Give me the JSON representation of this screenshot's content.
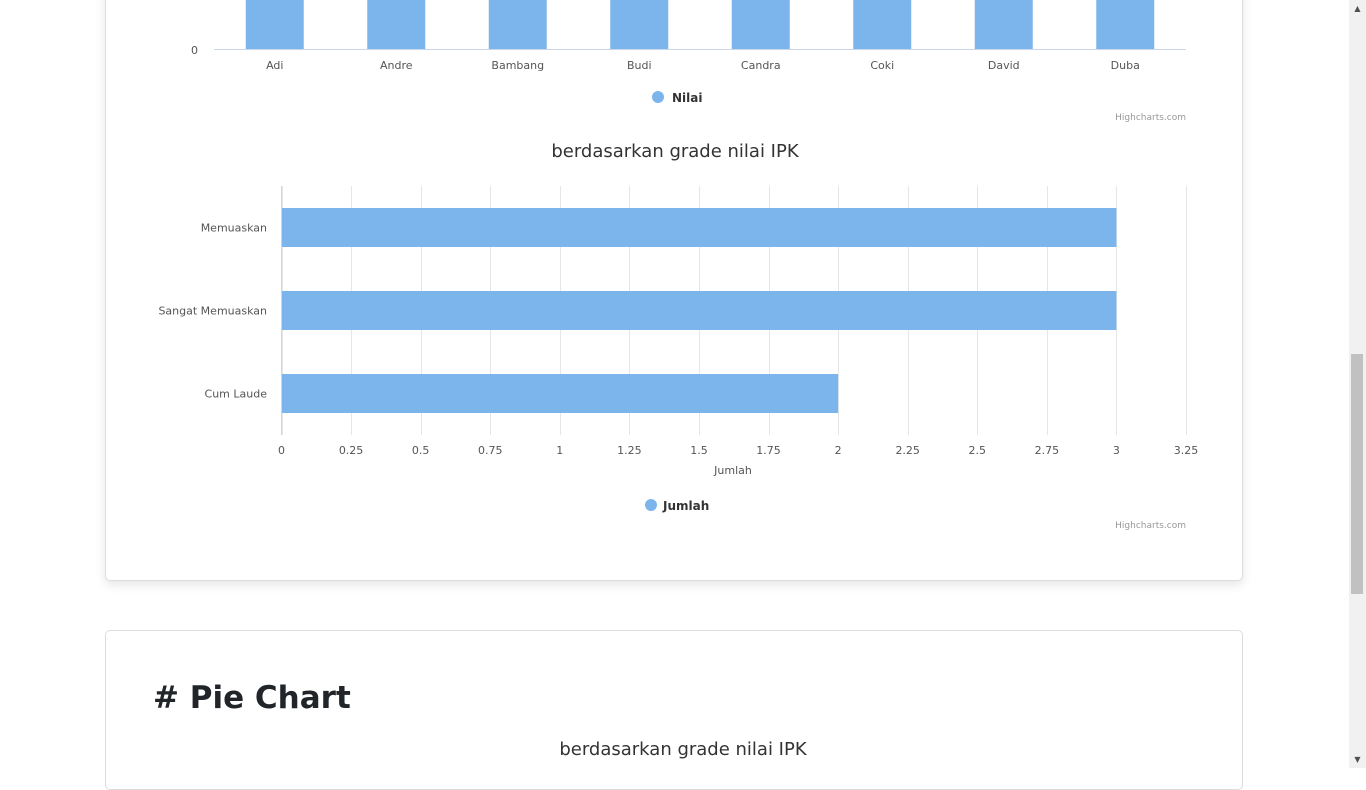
{
  "chart_data": [
    {
      "type": "bar",
      "categories": [
        "Adi",
        "Andre",
        "Bambang",
        "Budi",
        "Candra",
        "Coki",
        "David",
        "Duba"
      ],
      "series": [
        {
          "name": "Nilai",
          "values": [
            null,
            null,
            null,
            null,
            null,
            null,
            null,
            null
          ]
        }
      ],
      "ytick_visible": [
        "0"
      ],
      "legend": "bottom-center",
      "credits": "Highcharts.com",
      "color": "#7cb5ec"
    },
    {
      "type": "bar",
      "orientation": "horizontal",
      "title": "berdasarkan grade nilai IPK",
      "categories": [
        "Memuaskan",
        "Sangat Memuaskan",
        "Cum Laude"
      ],
      "series": [
        {
          "name": "Jumlah",
          "values": [
            3,
            3,
            2
          ]
        }
      ],
      "xlabel": "Jumlah",
      "xlim": [
        0,
        3.25
      ],
      "xticks": [
        "0",
        "0.25",
        "0.5",
        "0.75",
        "1",
        "1.25",
        "1.5",
        "1.75",
        "2",
        "2.25",
        "2.5",
        "2.75",
        "3",
        "3.25"
      ],
      "grid": true,
      "legend": "bottom-center",
      "credits": "Highcharts.com",
      "color": "#7cb5ec"
    }
  ],
  "pie_section": {
    "heading": "# Pie Chart",
    "title": "berdasarkan grade nilai IPK"
  },
  "scrollbar": {
    "up_icon": "triangle-up-icon",
    "down_icon": "triangle-down-icon"
  }
}
